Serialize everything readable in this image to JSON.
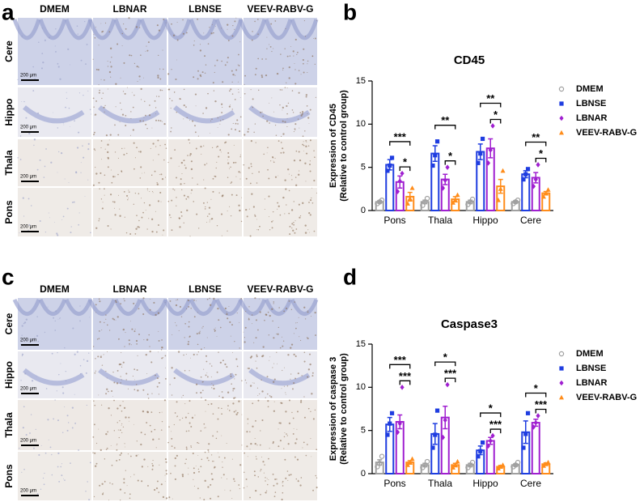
{
  "panels": [
    {
      "letter": "a",
      "columns": [
        "DMEM",
        "LBNAR",
        "LBNSE",
        "VEEV-RABV-G"
      ],
      "rows": [
        "Cere",
        "Hippo",
        "Thala",
        "Pons"
      ],
      "scale_bar": "200 μm"
    },
    {
      "letter": "c",
      "columns": [
        "DMEM",
        "LBNAR",
        "LBNSE",
        "VEEV-RABV-G"
      ],
      "rows": [
        "Cere",
        "Hippo",
        "Thala",
        "Pons"
      ],
      "scale_bar": "200 μm"
    }
  ],
  "chart_data": [
    {
      "letter": "b",
      "type": "bar",
      "title": "CD45",
      "ylabel": [
        "Expression of CD45",
        "(Relative to control group)"
      ],
      "categories": [
        "Pons",
        "Thala",
        "Hippo",
        "Cere"
      ],
      "ylim": [
        0,
        15
      ],
      "yticks": [
        0,
        5,
        10,
        15
      ],
      "series": [
        {
          "name": "DMEM",
          "color": "#a0a0a0",
          "marker": "circle-open",
          "values": [
            1,
            1,
            1,
            1
          ],
          "errors": [
            0.15,
            0.2,
            0.2,
            0.15
          ],
          "points": [
            [
              0.8,
              1.0,
              1.2
            ],
            [
              0.6,
              1.0,
              1.4
            ],
            [
              0.7,
              1.0,
              1.3
            ],
            [
              0.8,
              1.0,
              1.2
            ]
          ]
        },
        {
          "name": "LBNSE",
          "color": "#1f3de0",
          "marker": "square",
          "values": [
            5.3,
            6.6,
            6.8,
            4.2
          ],
          "errors": [
            0.6,
            0.9,
            0.9,
            0.4
          ],
          "points": [
            [
              4.6,
              5.2,
              6.1
            ],
            [
              5.2,
              6.4,
              8.0
            ],
            [
              5.5,
              6.6,
              8.3
            ],
            [
              3.6,
              4.2,
              4.8
            ]
          ]
        },
        {
          "name": "LBNAR",
          "color": "#a020d0",
          "marker": "diamond",
          "values": [
            3.3,
            3.6,
            7.2,
            3.8
          ],
          "errors": [
            0.7,
            0.6,
            1.1,
            0.6
          ],
          "points": [
            [
              2.2,
              3.4,
              4.3
            ],
            [
              2.6,
              3.5,
              5.0
            ],
            [
              5.5,
              7.0,
              9.8
            ],
            [
              2.8,
              3.6,
              5.3
            ]
          ]
        },
        {
          "name": "VEEV-RABV-G",
          "color": "#ff8c1a",
          "marker": "triangle",
          "values": [
            1.6,
            1.3,
            2.8,
            2.0
          ],
          "errors": [
            0.5,
            0.3,
            0.8,
            0.2
          ],
          "points": [
            [
              0.8,
              1.4,
              2.6
            ],
            [
              0.9,
              1.2,
              1.8
            ],
            [
              1.2,
              2.5,
              4.6
            ],
            [
              1.6,
              2.0,
              2.4
            ]
          ]
        }
      ],
      "significance": [
        [
          "***",
          "*"
        ],
        [
          "**",
          "*"
        ],
        [
          "**",
          "*"
        ],
        [
          "**",
          "*"
        ]
      ]
    },
    {
      "letter": "d",
      "type": "bar",
      "title": "Caspase3",
      "ylabel": [
        "Expression of caspase 3",
        "(Relative to control group)"
      ],
      "categories": [
        "Pons",
        "Thala",
        "Hippo",
        "Cere"
      ],
      "ylim": [
        0,
        15
      ],
      "yticks": [
        0,
        5,
        10,
        15
      ],
      "series": [
        {
          "name": "DMEM",
          "color": "#a0a0a0",
          "marker": "circle-open",
          "values": [
            1.3,
            1,
            1,
            1
          ],
          "errors": [
            0.3,
            0.2,
            0.2,
            0.15
          ],
          "points": [
            [
              0.8,
              1.2,
              2.0
            ],
            [
              0.7,
              1.0,
              1.4
            ],
            [
              0.7,
              1.0,
              1.3
            ],
            [
              0.8,
              1.0,
              1.3
            ]
          ]
        },
        {
          "name": "LBNSE",
          "color": "#1f3de0",
          "marker": "square",
          "values": [
            5.7,
            4.6,
            2.7,
            4.8
          ],
          "errors": [
            0.8,
            1.2,
            0.5,
            1.3
          ],
          "points": [
            [
              4.5,
              5.8,
              7.0
            ],
            [
              3.0,
              4.5,
              7.3
            ],
            [
              2.0,
              2.6,
              3.6
            ],
            [
              3.0,
              4.6,
              7.0
            ]
          ]
        },
        {
          "name": "LBNAR",
          "color": "#a020d0",
          "marker": "diamond",
          "values": [
            6.0,
            6.5,
            3.8,
            5.9
          ],
          "errors": [
            0.8,
            1.3,
            0.4,
            0.4
          ],
          "points": [
            [
              4.8,
              5.8,
              10.0
            ],
            [
              4.2,
              6.2,
              10.3
            ],
            [
              3.2,
              3.8,
              4.4
            ],
            [
              5.4,
              5.9,
              6.7
            ]
          ]
        },
        {
          "name": "VEEV-RABV-G",
          "color": "#ff8c1a",
          "marker": "triangle",
          "values": [
            1.3,
            1,
            0.8,
            1.1
          ],
          "errors": [
            0.2,
            0.2,
            0.15,
            0.15
          ],
          "points": [
            [
              1.0,
              1.3,
              1.7
            ],
            [
              0.7,
              1.0,
              1.4
            ],
            [
              0.6,
              0.8,
              1.0
            ],
            [
              0.9,
              1.1,
              1.3
            ]
          ]
        }
      ],
      "significance": [
        [
          "***",
          "***"
        ],
        [
          "*",
          "***"
        ],
        [
          "*",
          "***"
        ],
        [
          "*",
          "***"
        ]
      ]
    }
  ]
}
